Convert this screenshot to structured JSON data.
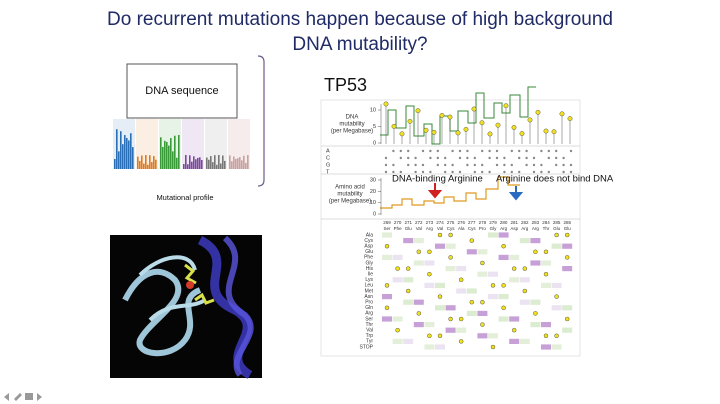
{
  "title": [
    "Do recurrent mutations happen because of high background",
    "DNA mutability?"
  ],
  "left": {
    "dna_sequence_label": "DNA sequence",
    "profile_label": "Mutational profile"
  },
  "figure": {
    "gene": "TP53",
    "dna_axis_label": [
      "DNA",
      "mutability",
      "(per Megabase)"
    ],
    "dna_ticks": [
      0,
      5,
      10
    ],
    "bases": [
      "A",
      "C",
      "G",
      "T"
    ],
    "aa_axis_label": [
      "Amino acid",
      "mutability",
      "(per Megabase)"
    ],
    "aa_ticks": [
      0,
      10,
      20,
      30
    ],
    "annotations": [
      "DNA-binding Arginine",
      "Arginine does not bind DNA"
    ],
    "codons": [
      {
        "number": "269",
        "residue": "Ser"
      },
      {
        "number": "270",
        "residue": "Phe"
      },
      {
        "number": "271",
        "residue": "Glu"
      },
      {
        "number": "272",
        "residue": "Val"
      },
      {
        "number": "273",
        "residue": "Arg"
      },
      {
        "number": "274",
        "residue": "Val"
      },
      {
        "number": "275",
        "residue": "Cys"
      },
      {
        "number": "276",
        "residue": "Ala"
      },
      {
        "number": "277",
        "residue": "Cys"
      },
      {
        "number": "278",
        "residue": "Pro"
      },
      {
        "number": "279",
        "residue": "Gly"
      },
      {
        "number": "280",
        "residue": "Arg"
      },
      {
        "number": "281",
        "residue": "Asp"
      },
      {
        "number": "282",
        "residue": "Arg"
      },
      {
        "number": "283",
        "residue": "Arg"
      },
      {
        "number": "284",
        "residue": "Thr"
      },
      {
        "number": "285",
        "residue": "Glu"
      },
      {
        "number": "286",
        "residue": "Glu"
      }
    ],
    "amino_acids": [
      "Ala",
      "Cys",
      "Asp",
      "Glu",
      "Phe",
      "Gly",
      "His",
      "Ile",
      "Lys",
      "Leu",
      "Met",
      "Asn",
      "Pro",
      "Gln",
      "Arg",
      "Ser",
      "Thr",
      "Val",
      "Trp",
      "Tyr",
      "STOP"
    ]
  }
}
